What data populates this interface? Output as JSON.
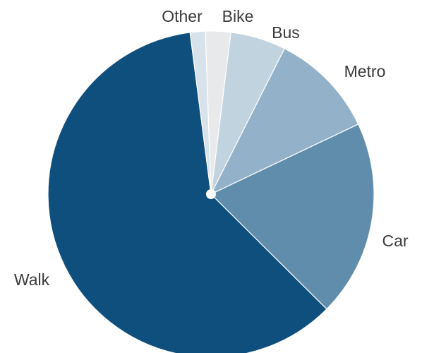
{
  "chart_data": {
    "type": "pie",
    "start_angle_deg": -2,
    "direction": "clockwise",
    "slices": [
      {
        "label": "Bike",
        "value": 2.5,
        "color": "#e8e9eb"
      },
      {
        "label": "Bus",
        "value": 5.5,
        "color": "#c2d3e0"
      },
      {
        "label": "Metro",
        "value": 10.5,
        "color": "#93b1c8"
      },
      {
        "label": "Car",
        "value": 19.5,
        "color": "#618dad"
      },
      {
        "label": "Walk",
        "value": 60.5,
        "color": "#0f4f7d"
      },
      {
        "label": "Other",
        "value": 1.5,
        "color": "#d8e2ea"
      }
    ],
    "center_dot_color": "#ffffff",
    "slice_border_color": "#ffffff"
  }
}
